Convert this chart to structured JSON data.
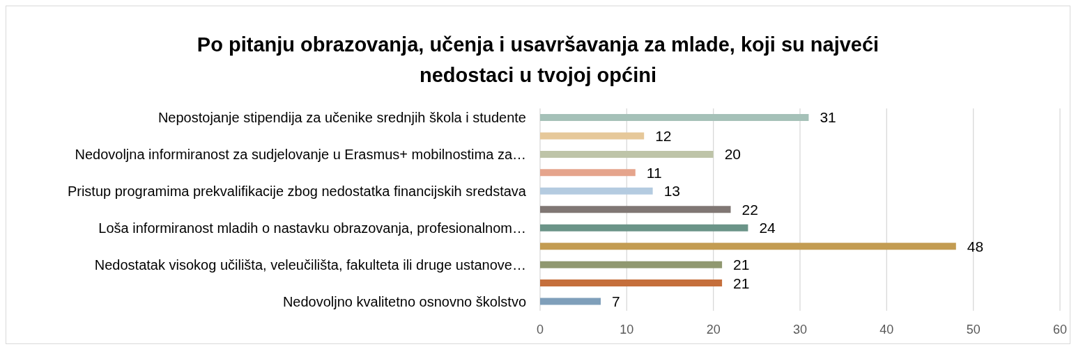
{
  "chart_data": {
    "type": "bar",
    "orientation": "horizontal",
    "title": "Po pitanju obrazovanja, učenja i usavršavanja za mlade, koji su najveći nedostaci u tvojoj općini",
    "categories": [
      "Nepostojanje stipendija za učenike srednjih škola i studente",
      null,
      "Nedovoljna informiranost za sudjelovanje u Erasmus+ mobilnostima za…",
      null,
      "Pristup programima prekvalifikacije zbog nedostatka financijskih sredstava",
      null,
      "Loša informiranost mladih o nastavku obrazovanja, profesionalnom…",
      null,
      "Nedostatak visokog učilišta, veleučilišta, fakulteta ili druge ustanove…",
      null,
      "Nedovoljno kvalitetno osnovno školstvo"
    ],
    "values": [
      31,
      12,
      20,
      11,
      13,
      22,
      24,
      48,
      21,
      21,
      7
    ],
    "colors": [
      "#a5c1b8",
      "#e6c89a",
      "#bec4a8",
      "#e5a48c",
      "#b4cbe0",
      "#807774",
      "#6b9488",
      "#c39c52",
      "#909870",
      "#c56f3c",
      "#7f9fba"
    ],
    "xlim": [
      0,
      60
    ],
    "xticks": [
      0,
      10,
      20,
      30,
      40,
      50,
      60
    ],
    "grid": "x",
    "data_labels": true
  }
}
